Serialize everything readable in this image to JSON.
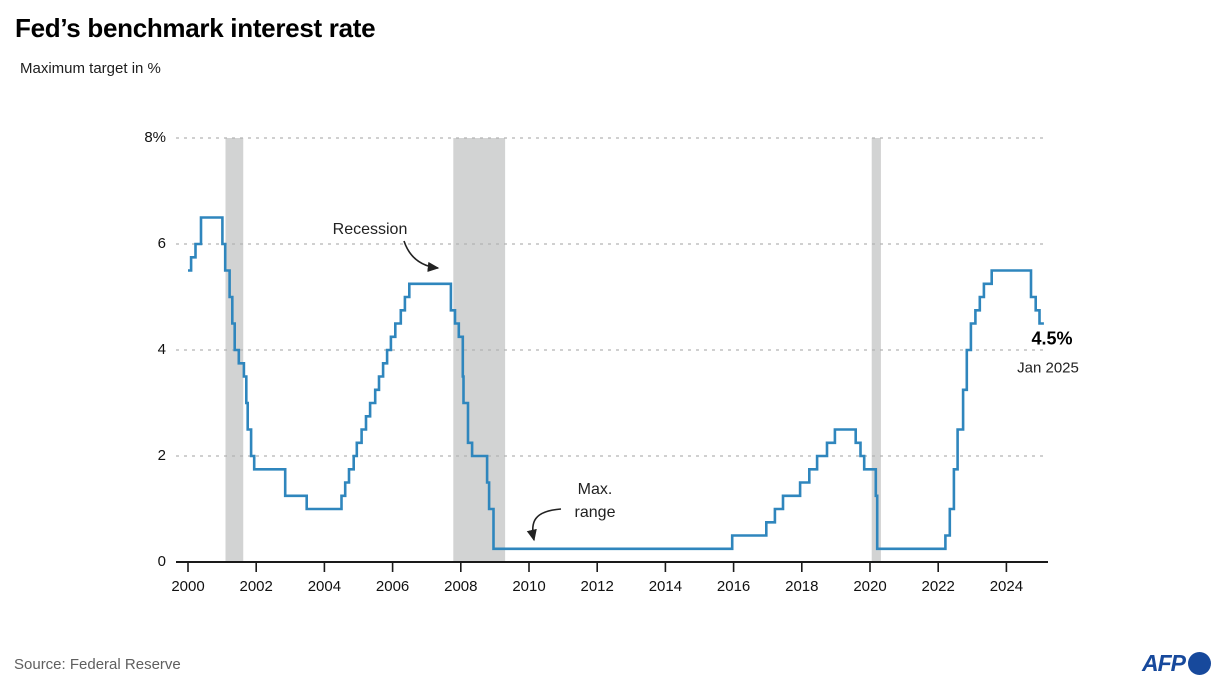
{
  "header": {
    "title": "Fed’s benchmark interest rate",
    "subtitle": "Maximum target in %"
  },
  "annotations": {
    "recession_label": "Recession",
    "max_range_line1": "Max.",
    "max_range_line2": "range",
    "latest_value": "4.5%",
    "latest_date": "Jan 2025"
  },
  "footer": {
    "source": "Source: Federal Reserve",
    "logo_text": "AFP"
  },
  "colors": {
    "line": "#2f86bd",
    "band": "#d2d3d3",
    "grid": "#b3b3b3",
    "axis": "#1a1a1a",
    "arrow": "#222222",
    "logo": "#17499c"
  },
  "chart_data": {
    "type": "line",
    "step": true,
    "title": "Fed’s benchmark interest rate",
    "ylabel": "Maximum target in %",
    "xlabel": "",
    "x_range": [
      2000,
      2025.3
    ],
    "y_range": [
      0,
      8
    ],
    "grid": true,
    "x_ticks": [
      2000,
      2002,
      2004,
      2006,
      2008,
      2010,
      2012,
      2014,
      2016,
      2018,
      2020,
      2022,
      2024
    ],
    "y_ticks": [
      {
        "value": 8,
        "label": "8%"
      },
      {
        "value": 6,
        "label": "6"
      },
      {
        "value": 4,
        "label": "4"
      },
      {
        "value": 2,
        "label": "2"
      },
      {
        "value": 0,
        "label": "0"
      }
    ],
    "recession_bands": [
      {
        "start": 2001.1,
        "end": 2001.62
      },
      {
        "start": 2007.78,
        "end": 2009.3
      },
      {
        "start": 2020.05,
        "end": 2020.32
      }
    ],
    "series": [
      {
        "name": "Fed funds maximum target (%)",
        "end_x": 2025.1,
        "points": [
          [
            2000.0,
            5.5
          ],
          [
            2000.09,
            5.75
          ],
          [
            2000.22,
            6.0
          ],
          [
            2000.38,
            6.5
          ],
          [
            2001.01,
            6.0
          ],
          [
            2001.09,
            5.5
          ],
          [
            2001.22,
            5.0
          ],
          [
            2001.3,
            4.5
          ],
          [
            2001.37,
            4.0
          ],
          [
            2001.49,
            3.75
          ],
          [
            2001.64,
            3.5
          ],
          [
            2001.71,
            3.0
          ],
          [
            2001.75,
            2.5
          ],
          [
            2001.85,
            2.0
          ],
          [
            2001.94,
            1.75
          ],
          [
            2002.85,
            1.25
          ],
          [
            2003.48,
            1.0
          ],
          [
            2004.5,
            1.25
          ],
          [
            2004.61,
            1.5
          ],
          [
            2004.72,
            1.75
          ],
          [
            2004.86,
            2.0
          ],
          [
            2004.95,
            2.25
          ],
          [
            2005.09,
            2.5
          ],
          [
            2005.22,
            2.75
          ],
          [
            2005.34,
            3.0
          ],
          [
            2005.49,
            3.25
          ],
          [
            2005.6,
            3.5
          ],
          [
            2005.72,
            3.75
          ],
          [
            2005.84,
            4.0
          ],
          [
            2005.95,
            4.25
          ],
          [
            2006.08,
            4.5
          ],
          [
            2006.24,
            4.75
          ],
          [
            2006.36,
            5.0
          ],
          [
            2006.49,
            5.25
          ],
          [
            2007.71,
            4.75
          ],
          [
            2007.83,
            4.5
          ],
          [
            2007.94,
            4.25
          ],
          [
            2008.06,
            3.5
          ],
          [
            2008.08,
            3.0
          ],
          [
            2008.21,
            2.25
          ],
          [
            2008.33,
            2.0
          ],
          [
            2008.77,
            1.5
          ],
          [
            2008.83,
            1.0
          ],
          [
            2008.96,
            0.25
          ],
          [
            2015.96,
            0.5
          ],
          [
            2016.96,
            0.75
          ],
          [
            2017.21,
            1.0
          ],
          [
            2017.45,
            1.25
          ],
          [
            2017.95,
            1.5
          ],
          [
            2018.22,
            1.75
          ],
          [
            2018.45,
            2.0
          ],
          [
            2018.74,
            2.25
          ],
          [
            2018.97,
            2.5
          ],
          [
            2019.58,
            2.25
          ],
          [
            2019.72,
            2.0
          ],
          [
            2019.83,
            1.75
          ],
          [
            2020.17,
            1.25
          ],
          [
            2020.21,
            0.25
          ],
          [
            2022.21,
            0.5
          ],
          [
            2022.34,
            1.0
          ],
          [
            2022.46,
            1.75
          ],
          [
            2022.57,
            2.5
          ],
          [
            2022.73,
            3.25
          ],
          [
            2022.84,
            4.0
          ],
          [
            2022.96,
            4.5
          ],
          [
            2023.09,
            4.75
          ],
          [
            2023.22,
            5.0
          ],
          [
            2023.34,
            5.25
          ],
          [
            2023.57,
            5.5
          ],
          [
            2024.72,
            5.0
          ],
          [
            2024.86,
            4.75
          ],
          [
            2024.97,
            4.5
          ]
        ]
      }
    ],
    "legend": null
  }
}
